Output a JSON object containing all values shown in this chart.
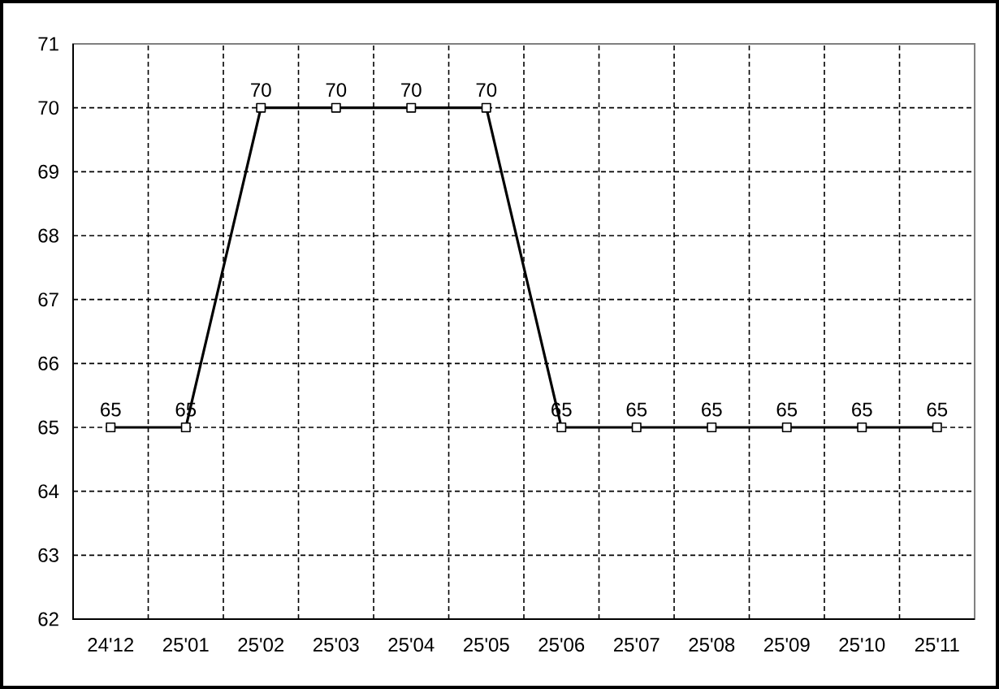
{
  "chart_data": {
    "type": "line",
    "categories": [
      "24'12",
      "25'01",
      "25'02",
      "25'03",
      "25'04",
      "25'05",
      "25'06",
      "25'07",
      "25'08",
      "25'09",
      "25'10",
      "25'11"
    ],
    "values": [
      65,
      65,
      70,
      70,
      70,
      70,
      65,
      65,
      65,
      65,
      65,
      65
    ],
    "color": "#000000",
    "marker": "square",
    "line_style": "solid",
    "data_labels": true,
    "grid": true,
    "ylim": [
      62,
      71
    ],
    "yticks": [
      62,
      63,
      64,
      65,
      66,
      67,
      68,
      69,
      70,
      71
    ]
  }
}
